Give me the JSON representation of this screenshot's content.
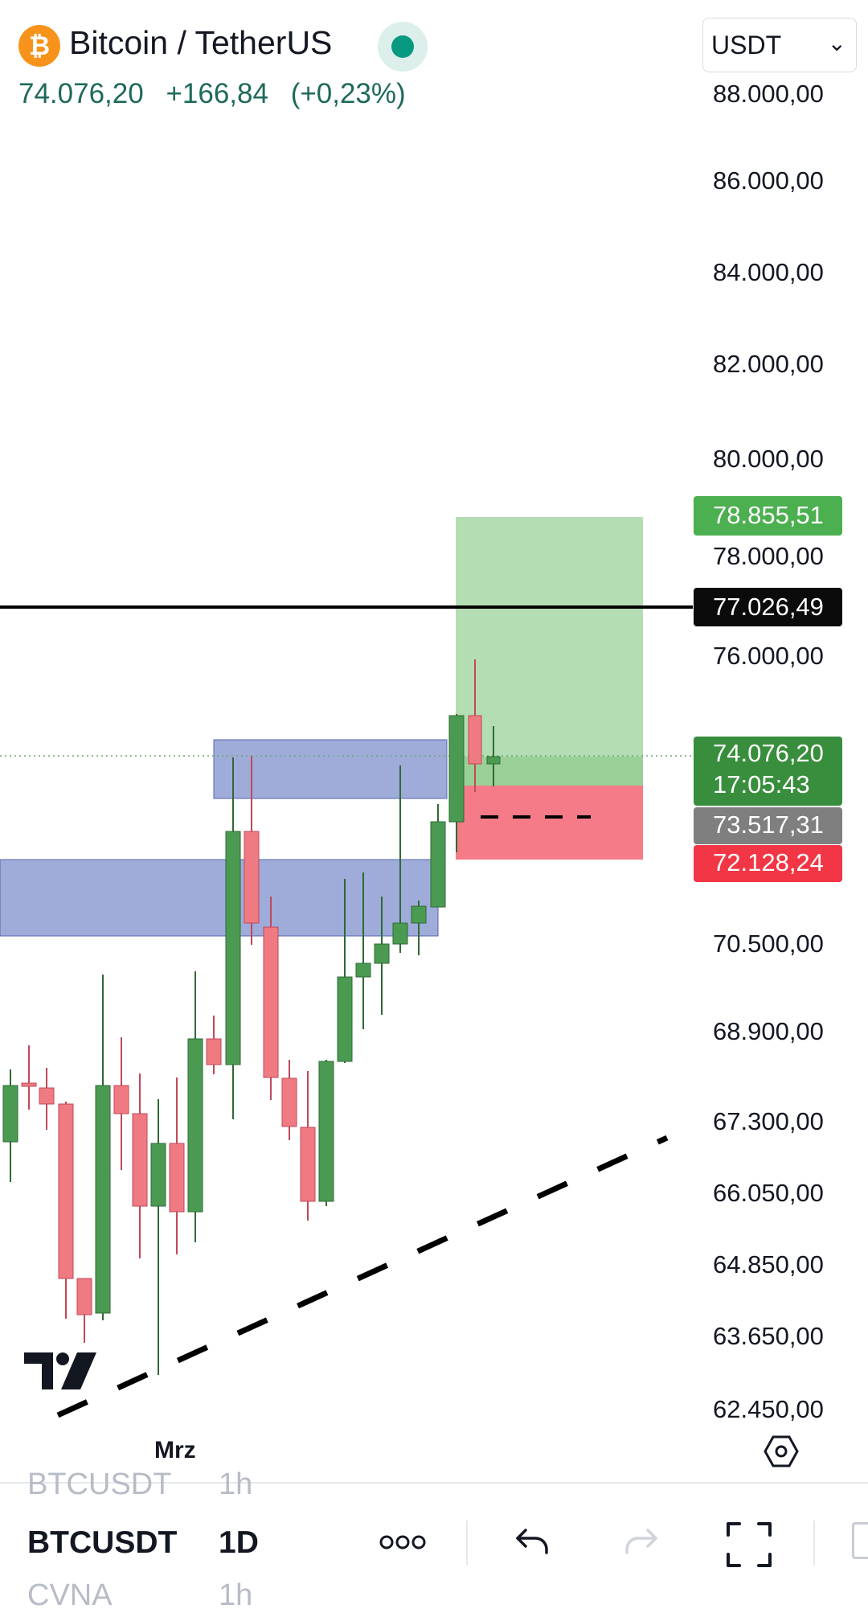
{
  "header": {
    "coin_symbol": "₿",
    "title": "Bitcoin / TetherUS",
    "last_price": "74.076,20",
    "change": "+166,84",
    "change_percent": "(+0,23%)",
    "status": "market-open"
  },
  "currency_select": {
    "value": "USDT"
  },
  "price_axis": {
    "labels": [
      "88.000,00",
      "86.000,00",
      "84.000,00",
      "82.000,00",
      "80.000,00",
      "78.000,00",
      "76.000,00",
      "70.500,00",
      "68.900,00",
      "67.300,00",
      "66.050,00",
      "64.850,00",
      "63.650,00",
      "62.450,00"
    ]
  },
  "tags": {
    "target": "78.855,51",
    "level": "77.026,49",
    "last": "74.076,20",
    "countdown": "17:05:43",
    "entry": "73.517,31",
    "stop": "72.128,24"
  },
  "time_axis": {
    "label": "Mrz"
  },
  "bottom_bar": {
    "symbol": "BTCUSDT",
    "interval": "1D",
    "ghost_above_symbol": "BTCUSDT",
    "ghost_above_interval": "1h",
    "ghost_below_symbol": "CVNA",
    "ghost_below_interval": "1h"
  },
  "colors": {
    "up": "#4b9a52",
    "down": "#f07a82",
    "target_zone": "#b5ddb3",
    "stop_zone": "#f47b87",
    "demand_zone": "#9aa8d8",
    "last_price_tag": "#388e3c",
    "entry_tag": "#7f7f7f",
    "stop_tag": "#f23645",
    "target_tag": "#4caf50"
  },
  "icons": [
    "bitcoin-icon",
    "status-dot-icon",
    "chevron-down-icon",
    "tradingview-logo",
    "chart-settings-icon",
    "more-icon",
    "undo-icon",
    "redo-icon",
    "fullscreen-icon"
  ]
}
